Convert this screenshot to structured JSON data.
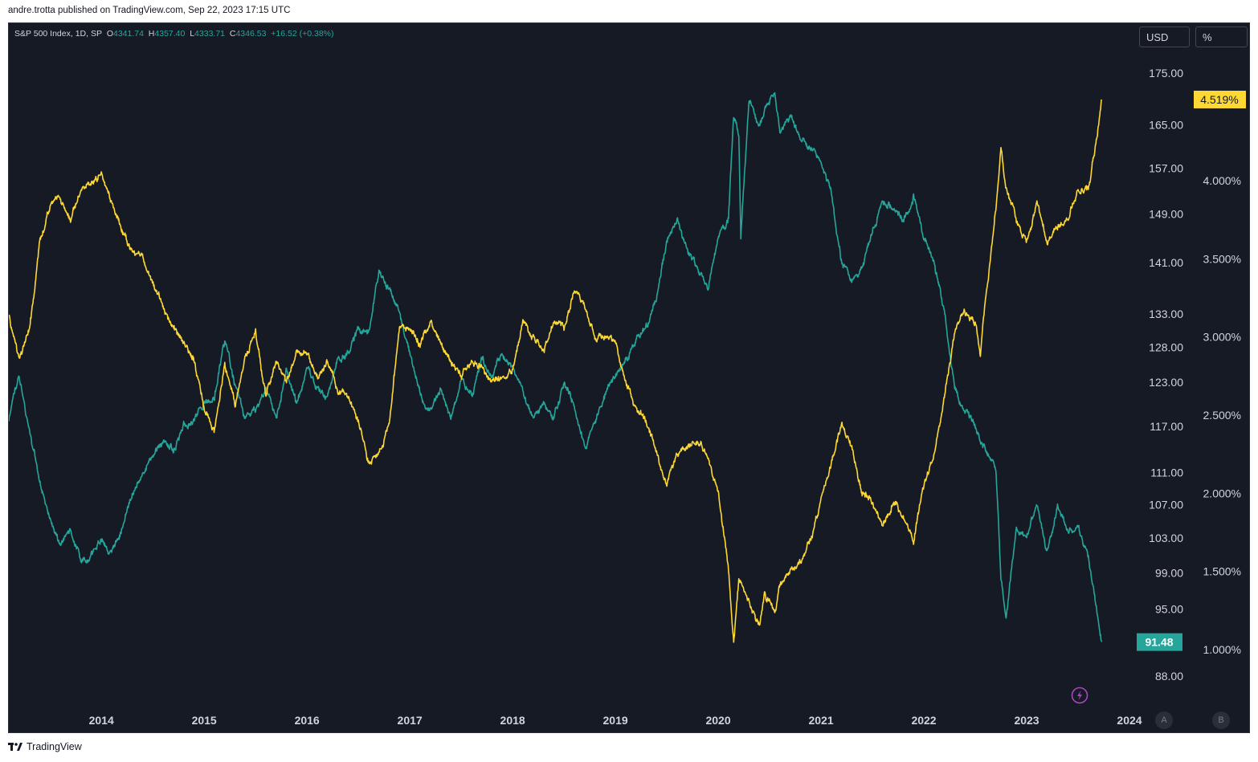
{
  "publish_line": "andre.trotta published on TradingView.com, Sep 22, 2023 17:15 UTC",
  "footer": {
    "brand": "TradingView"
  },
  "legend": {
    "symbol": "S&P 500 Index, 1D, SP",
    "open_label": "O",
    "open": "4341.74",
    "high_label": "H",
    "high": "4357.40",
    "low_label": "L",
    "low": "4333.71",
    "close_label": "C",
    "close": "4346.53",
    "change": "+16.52 (+0.38%)"
  },
  "buttons": {
    "currency": "USD",
    "percent": "%",
    "auto": "A",
    "b": "B"
  },
  "colors": {
    "background": "#161a25",
    "teal": "#26a69a",
    "yellow": "#fdd835",
    "text": "#d1d4dc",
    "last_label_teal": "#26a69a",
    "last_label_yellow": "#fdd835",
    "alert": "#ab47bc"
  },
  "chart_data": {
    "type": "line",
    "title": "S&P 500 Index, 1D, SP",
    "x_labels": [
      "2014",
      "2015",
      "2016",
      "2017",
      "2018",
      "2019",
      "2020",
      "2021",
      "2022",
      "2023",
      "2024"
    ],
    "x_range": [
      2013.1,
      2024.0
    ],
    "left_axis": {
      "scale": "log",
      "ticks": [
        175.0,
        165.0,
        157.0,
        149.0,
        141.0,
        133.0,
        128.0,
        123.0,
        117.0,
        111.0,
        107.0,
        103.0,
        99.0,
        95.0,
        88.0
      ],
      "tick_labels": [
        "175.00",
        "165.00",
        "157.00",
        "149.00",
        "141.00",
        "133.00",
        "128.00",
        "123.00",
        "117.00",
        "111.00",
        "107.00",
        "103.00",
        "99.00",
        "95.00",
        "88.00"
      ],
      "last_value_label": "91.48"
    },
    "right_axis": {
      "ticks": [
        4.0,
        3.5,
        3.0,
        2.5,
        2.0,
        1.5,
        1.0
      ],
      "tick_labels": [
        "4.000%",
        "3.500%",
        "3.000%",
        "2.500%",
        "2.000%",
        "1.500%",
        "1.000%"
      ],
      "last_value_label": "4.519%"
    },
    "series": [
      {
        "name": "teal-series (left axis)",
        "color": "#26a69a",
        "points": [
          [
            2013.1,
            118
          ],
          [
            2013.2,
            124
          ],
          [
            2013.3,
            116
          ],
          [
            2013.4,
            110
          ],
          [
            2013.5,
            105
          ],
          [
            2013.6,
            102
          ],
          [
            2013.7,
            104
          ],
          [
            2013.8,
            100
          ],
          [
            2013.9,
            101
          ],
          [
            2014.0,
            103
          ],
          [
            2014.1,
            101
          ],
          [
            2014.2,
            104
          ],
          [
            2014.3,
            108
          ],
          [
            2014.4,
            111
          ],
          [
            2014.5,
            113
          ],
          [
            2014.6,
            115
          ],
          [
            2014.7,
            114
          ],
          [
            2014.8,
            117
          ],
          [
            2014.9,
            118
          ],
          [
            2015.0,
            120
          ],
          [
            2015.1,
            121
          ],
          [
            2015.2,
            129
          ],
          [
            2015.3,
            123
          ],
          [
            2015.4,
            118
          ],
          [
            2015.5,
            119
          ],
          [
            2015.6,
            122
          ],
          [
            2015.7,
            118
          ],
          [
            2015.8,
            125
          ],
          [
            2015.9,
            120
          ],
          [
            2016.0,
            125
          ],
          [
            2016.1,
            122
          ],
          [
            2016.2,
            121
          ],
          [
            2016.3,
            126
          ],
          [
            2016.4,
            127
          ],
          [
            2016.5,
            131
          ],
          [
            2016.6,
            130
          ],
          [
            2016.7,
            140
          ],
          [
            2016.8,
            137
          ],
          [
            2016.9,
            133
          ],
          [
            2017.0,
            127
          ],
          [
            2017.1,
            121
          ],
          [
            2017.2,
            119
          ],
          [
            2017.3,
            122
          ],
          [
            2017.4,
            118
          ],
          [
            2017.5,
            123
          ],
          [
            2017.6,
            121
          ],
          [
            2017.7,
            126
          ],
          [
            2017.8,
            124
          ],
          [
            2017.9,
            127
          ],
          [
            2018.0,
            125
          ],
          [
            2018.1,
            122
          ],
          [
            2018.2,
            118
          ],
          [
            2018.3,
            120
          ],
          [
            2018.4,
            118
          ],
          [
            2018.5,
            123
          ],
          [
            2018.6,
            120
          ],
          [
            2018.7,
            114
          ],
          [
            2018.8,
            118
          ],
          [
            2018.9,
            121
          ],
          [
            2019.0,
            124
          ],
          [
            2019.1,
            126
          ],
          [
            2019.2,
            129
          ],
          [
            2019.3,
            131
          ],
          [
            2019.4,
            135
          ],
          [
            2019.5,
            145
          ],
          [
            2019.6,
            148
          ],
          [
            2019.7,
            143
          ],
          [
            2019.8,
            140
          ],
          [
            2019.9,
            137
          ],
          [
            2020.0,
            145
          ],
          [
            2020.1,
            148
          ],
          [
            2020.15,
            166
          ],
          [
            2020.2,
            163
          ],
          [
            2020.22,
            145
          ],
          [
            2020.3,
            170
          ],
          [
            2020.4,
            165
          ],
          [
            2020.5,
            170
          ],
          [
            2020.55,
            171
          ],
          [
            2020.6,
            163
          ],
          [
            2020.7,
            167
          ],
          [
            2020.8,
            162
          ],
          [
            2020.9,
            161
          ],
          [
            2021.0,
            158
          ],
          [
            2021.1,
            153
          ],
          [
            2021.15,
            146
          ],
          [
            2021.2,
            141
          ],
          [
            2021.3,
            138
          ],
          [
            2021.4,
            140
          ],
          [
            2021.5,
            146
          ],
          [
            2021.6,
            151
          ],
          [
            2021.7,
            150
          ],
          [
            2021.8,
            148
          ],
          [
            2021.9,
            152
          ],
          [
            2022.0,
            145
          ],
          [
            2022.1,
            141
          ],
          [
            2022.2,
            133
          ],
          [
            2022.3,
            122
          ],
          [
            2022.4,
            119
          ],
          [
            2022.5,
            117
          ],
          [
            2022.6,
            114
          ],
          [
            2022.7,
            111
          ],
          [
            2022.75,
            98
          ],
          [
            2022.8,
            94
          ],
          [
            2022.9,
            104
          ],
          [
            2023.0,
            103
          ],
          [
            2023.1,
            107
          ],
          [
            2023.2,
            101
          ],
          [
            2023.3,
            107
          ],
          [
            2023.4,
            104
          ],
          [
            2023.5,
            104
          ],
          [
            2023.6,
            101
          ],
          [
            2023.65,
            97
          ],
          [
            2023.7,
            93.5
          ],
          [
            2023.73,
            91.48
          ]
        ]
      },
      {
        "name": "yellow-series (right axis, %)",
        "color": "#fdd835",
        "points": [
          [
            2013.1,
            3.12
          ],
          [
            2013.2,
            2.85
          ],
          [
            2013.3,
            3.05
          ],
          [
            2013.4,
            3.6
          ],
          [
            2013.5,
            3.82
          ],
          [
            2013.6,
            3.9
          ],
          [
            2013.7,
            3.75
          ],
          [
            2013.8,
            3.95
          ],
          [
            2013.9,
            3.99
          ],
          [
            2014.0,
            4.05
          ],
          [
            2014.1,
            3.85
          ],
          [
            2014.2,
            3.7
          ],
          [
            2014.3,
            3.55
          ],
          [
            2014.4,
            3.5
          ],
          [
            2014.5,
            3.35
          ],
          [
            2014.6,
            3.2
          ],
          [
            2014.7,
            3.05
          ],
          [
            2014.8,
            2.98
          ],
          [
            2014.9,
            2.85
          ],
          [
            2015.0,
            2.55
          ],
          [
            2015.1,
            2.4
          ],
          [
            2015.2,
            2.82
          ],
          [
            2015.3,
            2.55
          ],
          [
            2015.4,
            2.85
          ],
          [
            2015.5,
            3.05
          ],
          [
            2015.6,
            2.6
          ],
          [
            2015.7,
            2.85
          ],
          [
            2015.8,
            2.7
          ],
          [
            2015.9,
            2.9
          ],
          [
            2016.0,
            2.9
          ],
          [
            2016.1,
            2.75
          ],
          [
            2016.2,
            2.85
          ],
          [
            2016.3,
            2.65
          ],
          [
            2016.4,
            2.62
          ],
          [
            2016.5,
            2.45
          ],
          [
            2016.6,
            2.2
          ],
          [
            2016.7,
            2.25
          ],
          [
            2016.8,
            2.45
          ],
          [
            2016.9,
            3.05
          ],
          [
            2017.0,
            3.05
          ],
          [
            2017.1,
            2.95
          ],
          [
            2017.2,
            3.1
          ],
          [
            2017.3,
            2.95
          ],
          [
            2017.4,
            2.85
          ],
          [
            2017.5,
            2.75
          ],
          [
            2017.6,
            2.85
          ],
          [
            2017.7,
            2.8
          ],
          [
            2017.8,
            2.72
          ],
          [
            2017.9,
            2.75
          ],
          [
            2018.0,
            2.8
          ],
          [
            2018.1,
            3.1
          ],
          [
            2018.2,
            3.0
          ],
          [
            2018.3,
            2.9
          ],
          [
            2018.4,
            3.1
          ],
          [
            2018.5,
            3.05
          ],
          [
            2018.6,
            3.3
          ],
          [
            2018.7,
            3.2
          ],
          [
            2018.8,
            3.0
          ],
          [
            2018.9,
            3.0
          ],
          [
            2019.0,
            2.95
          ],
          [
            2019.1,
            2.7
          ],
          [
            2019.2,
            2.55
          ],
          [
            2019.3,
            2.45
          ],
          [
            2019.4,
            2.25
          ],
          [
            2019.5,
            2.05
          ],
          [
            2019.6,
            2.25
          ],
          [
            2019.7,
            2.3
          ],
          [
            2019.8,
            2.35
          ],
          [
            2019.9,
            2.25
          ],
          [
            2020.0,
            2.0
          ],
          [
            2020.1,
            1.5
          ],
          [
            2020.15,
            1.05
          ],
          [
            2020.2,
            1.45
          ],
          [
            2020.3,
            1.3
          ],
          [
            2020.4,
            1.15
          ],
          [
            2020.45,
            1.35
          ],
          [
            2020.55,
            1.25
          ],
          [
            2020.6,
            1.4
          ],
          [
            2020.7,
            1.5
          ],
          [
            2020.8,
            1.55
          ],
          [
            2020.9,
            1.7
          ],
          [
            2021.0,
            1.95
          ],
          [
            2021.1,
            2.2
          ],
          [
            2021.2,
            2.45
          ],
          [
            2021.3,
            2.3
          ],
          [
            2021.4,
            2.0
          ],
          [
            2021.5,
            1.95
          ],
          [
            2021.6,
            1.8
          ],
          [
            2021.7,
            1.95
          ],
          [
            2021.8,
            1.85
          ],
          [
            2021.9,
            1.7
          ],
          [
            2022.0,
            2.05
          ],
          [
            2022.1,
            2.25
          ],
          [
            2022.2,
            2.6
          ],
          [
            2022.3,
            3.05
          ],
          [
            2022.4,
            3.15
          ],
          [
            2022.5,
            3.1
          ],
          [
            2022.55,
            2.9
          ],
          [
            2022.6,
            3.25
          ],
          [
            2022.7,
            3.8
          ],
          [
            2022.75,
            4.2
          ],
          [
            2022.8,
            3.95
          ],
          [
            2022.9,
            3.75
          ],
          [
            2023.0,
            3.6
          ],
          [
            2023.1,
            3.85
          ],
          [
            2023.2,
            3.6
          ],
          [
            2023.3,
            3.7
          ],
          [
            2023.4,
            3.75
          ],
          [
            2023.5,
            3.95
          ],
          [
            2023.6,
            3.95
          ],
          [
            2023.65,
            4.15
          ],
          [
            2023.7,
            4.35
          ],
          [
            2023.73,
            4.519
          ]
        ]
      }
    ]
  }
}
